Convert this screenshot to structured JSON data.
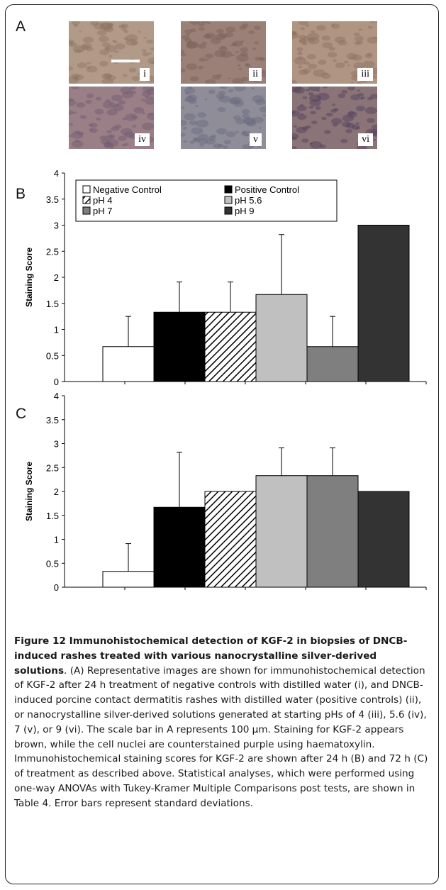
{
  "panels": {
    "a_letter": "A",
    "b_letter": "B",
    "c_letter": "C"
  },
  "images": [
    {
      "label": "i",
      "base": "#b29a88",
      "tint": "#8e7463"
    },
    {
      "label": "ii",
      "base": "#9a8077",
      "tint": "#7b5f5a"
    },
    {
      "label": "iii",
      "base": "#b09583",
      "tint": "#8d6f60"
    },
    {
      "label": "iv",
      "base": "#9b7f86",
      "tint": "#6f5a70"
    },
    {
      "label": "v",
      "base": "#8f8d98",
      "tint": "#6a6a80"
    },
    {
      "label": "vi",
      "base": "#8a7478",
      "tint": "#4e3f58"
    }
  ],
  "chart_data": [
    {
      "type": "bar",
      "panel": "B",
      "ylabel": "Staining Score",
      "ylim": [
        0,
        4
      ],
      "yticks": [
        "0",
        "0.5",
        "1",
        "1.5",
        "2",
        "2.5",
        "3",
        "3.5",
        "4"
      ],
      "legend_position": "top-left",
      "series": [
        {
          "name": "Negative Control",
          "value": 0.67,
          "error": 0.58,
          "fill": "white"
        },
        {
          "name": "Positive Control",
          "value": 1.33,
          "error": 0.58,
          "fill": "black"
        },
        {
          "name": "pH 4",
          "value": 1.33,
          "error": 0.58,
          "fill": "hatch"
        },
        {
          "name": "pH 5.6",
          "value": 1.67,
          "error": 1.15,
          "fill": "#c0c0c0"
        },
        {
          "name": "pH 7",
          "value": 0.67,
          "error": 0.58,
          "fill": "#7f7f7f"
        },
        {
          "name": "pH 9",
          "value": 3.0,
          "error": 0,
          "fill": "#333333"
        }
      ]
    },
    {
      "type": "bar",
      "panel": "C",
      "ylabel": "Staining Score",
      "ylim": [
        0,
        4
      ],
      "yticks": [
        "0",
        "0.5",
        "1",
        "1.5",
        "2",
        "2.5",
        "3",
        "3.5",
        "4"
      ],
      "series": [
        {
          "name": "Negative Control",
          "value": 0.33,
          "error": 0.58,
          "fill": "white"
        },
        {
          "name": "Positive Control",
          "value": 1.67,
          "error": 1.15,
          "fill": "black"
        },
        {
          "name": "pH 4",
          "value": 2.0,
          "error": 0,
          "fill": "hatch"
        },
        {
          "name": "pH 5.6",
          "value": 2.33,
          "error": 0.58,
          "fill": "#c0c0c0"
        },
        {
          "name": "pH 7",
          "value": 2.33,
          "error": 0.58,
          "fill": "#7f7f7f"
        },
        {
          "name": "pH 9",
          "value": 2.0,
          "error": 0,
          "fill": "#333333"
        }
      ]
    }
  ],
  "caption": {
    "title": "Figure 12 Immunohistochemical detection of KGF-2 in biopsies of DNCB-induced rashes treated with various nanocrystalline silver-derived solutions",
    "body": ". (A) Representative images are shown for immunohistochemical detection of KGF-2 after 24 h treatment of negative controls with distilled water (i), and DNCB-induced porcine contact dermatitis rashes with distilled water (positive controls) (ii), or nanocrystalline silver-derived solutions generated at starting pHs of 4 (iii), 5.6 (iv), 7 (v), or 9 (vi). The scale bar in A represents 100 µm. Staining for KGF-2 appears brown, while the cell nuclei are counterstained purple using haematoxylin. Immunohistochemical staining scores for KGF-2 are shown after 24 h (B) and 72 h (C) of treatment as described above. Statistical analyses, which were performed using one-way ANOVAs with Tukey-Kramer Multiple Comparisons post tests, are shown in Table 4. Error bars represent standard deviations."
  }
}
